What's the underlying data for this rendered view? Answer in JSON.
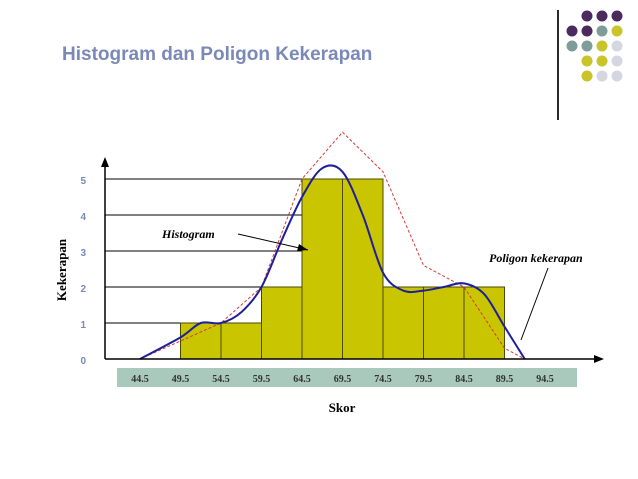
{
  "slide": {
    "title": "Histogram dan Poligon Kekerapan"
  },
  "decoration": {
    "colors": [
      "#4b2a5e",
      "#7f9c9a",
      "#c8c42a",
      "#d6d6e2"
    ]
  },
  "chart_data": {
    "type": "bar",
    "xlabel": "Skor",
    "ylabel": "Kekerapan",
    "x_ticks": [
      "44.5",
      "49.5",
      "54.5",
      "59.5",
      "64.5",
      "69.5",
      "74.5",
      "79.5",
      "84.5",
      "89.5",
      "94.5"
    ],
    "y_ticks": [
      "0",
      "1",
      "2",
      "3",
      "4",
      "5"
    ],
    "ylim": [
      0,
      5.5
    ],
    "grid": false,
    "bins": [
      {
        "from": 49.5,
        "to": 54.5,
        "value": 1
      },
      {
        "from": 54.5,
        "to": 59.5,
        "value": 1
      },
      {
        "from": 59.5,
        "to": 64.5,
        "value": 2
      },
      {
        "from": 64.5,
        "to": 69.5,
        "value": 5
      },
      {
        "from": 69.5,
        "to": 74.5,
        "value": 5
      },
      {
        "from": 74.5,
        "to": 79.5,
        "value": 2
      },
      {
        "from": 79.5,
        "to": 84.5,
        "value": 2
      },
      {
        "from": 84.5,
        "to": 89.5,
        "value": 2
      }
    ],
    "polygon_smooth": [
      [
        44.5,
        0
      ],
      [
        49.5,
        0.6
      ],
      [
        52.0,
        1.0
      ],
      [
        54.5,
        1.0
      ],
      [
        57.0,
        1.3
      ],
      [
        59.5,
        2.0
      ],
      [
        62.0,
        3.3
      ],
      [
        64.5,
        4.5
      ],
      [
        67.0,
        5.3
      ],
      [
        69.5,
        5.2
      ],
      [
        72.0,
        4.0
      ],
      [
        74.5,
        2.4
      ],
      [
        77.0,
        1.9
      ],
      [
        79.5,
        1.9
      ],
      [
        82.0,
        2.0
      ],
      [
        84.5,
        2.1
      ],
      [
        87.0,
        1.8
      ],
      [
        89.5,
        0.9
      ],
      [
        92.0,
        0
      ]
    ],
    "polygon_dashed": [
      [
        44.5,
        0
      ],
      [
        49.5,
        0.5
      ],
      [
        54.5,
        1.0
      ],
      [
        59.5,
        2.0
      ],
      [
        64.5,
        5.0
      ],
      [
        69.5,
        6.3
      ],
      [
        74.5,
        5.2
      ],
      [
        79.5,
        2.6
      ],
      [
        84.5,
        2.0
      ],
      [
        89.5,
        0.3
      ],
      [
        92.0,
        0
      ]
    ],
    "series_colors": {
      "bars": "#c9c500",
      "bar_stroke": "#4a4a00",
      "polygon_smooth": "#1f1f9a",
      "polygon_dashed": "#d23c3c",
      "xaxis_band": "#aac9bd"
    },
    "annotations": {
      "histogram": "Histogram",
      "poligon": "Poligon kekerapan"
    }
  }
}
